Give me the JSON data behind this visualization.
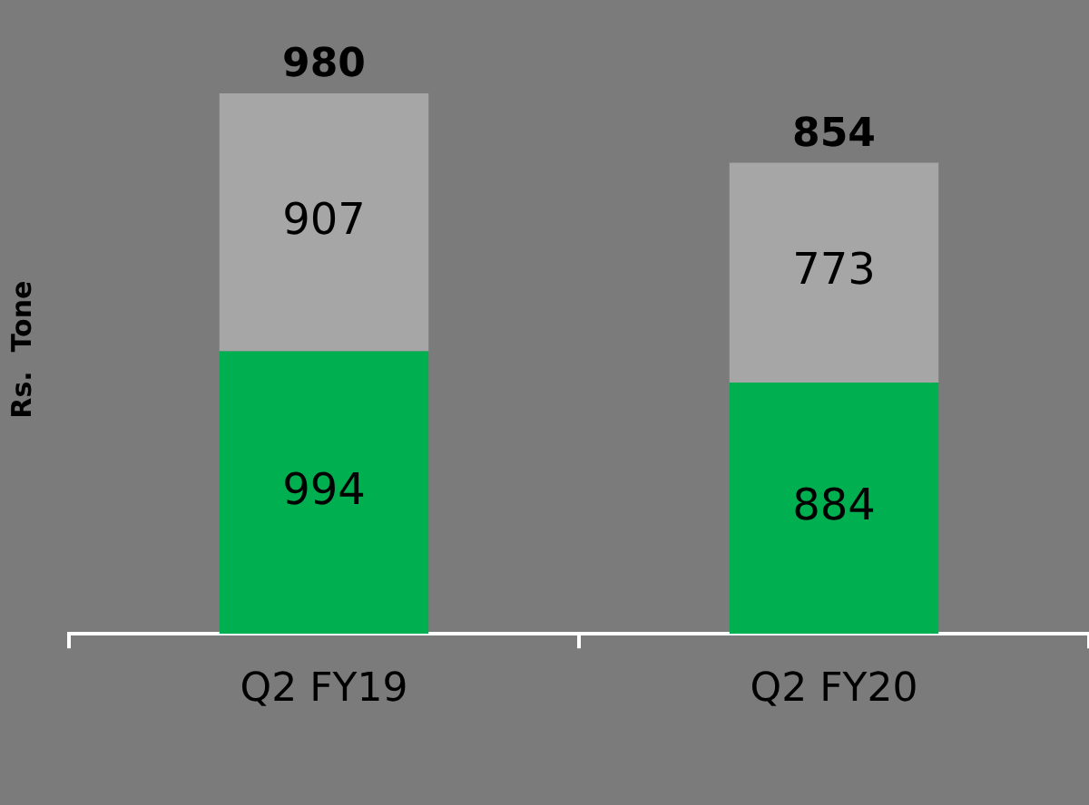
{
  "chart_data": {
    "type": "bar",
    "ylabel": "Rs.  Tone",
    "categories": [
      "Q2 FY19",
      "Q2 FY20"
    ],
    "stacked": true,
    "series": [
      {
        "color": "#00b050",
        "values": [
          994,
          884
        ]
      },
      {
        "color": "#a6a6a6",
        "values": [
          907,
          773
        ]
      }
    ],
    "data_labels": true,
    "annotations": [
      {
        "text": "980",
        "x": "Q2 FY19",
        "y": 1901
      },
      {
        "text": "854",
        "x": "Q2 FY20",
        "y": 1657
      }
    ],
    "legend": false,
    "grid": false
  }
}
